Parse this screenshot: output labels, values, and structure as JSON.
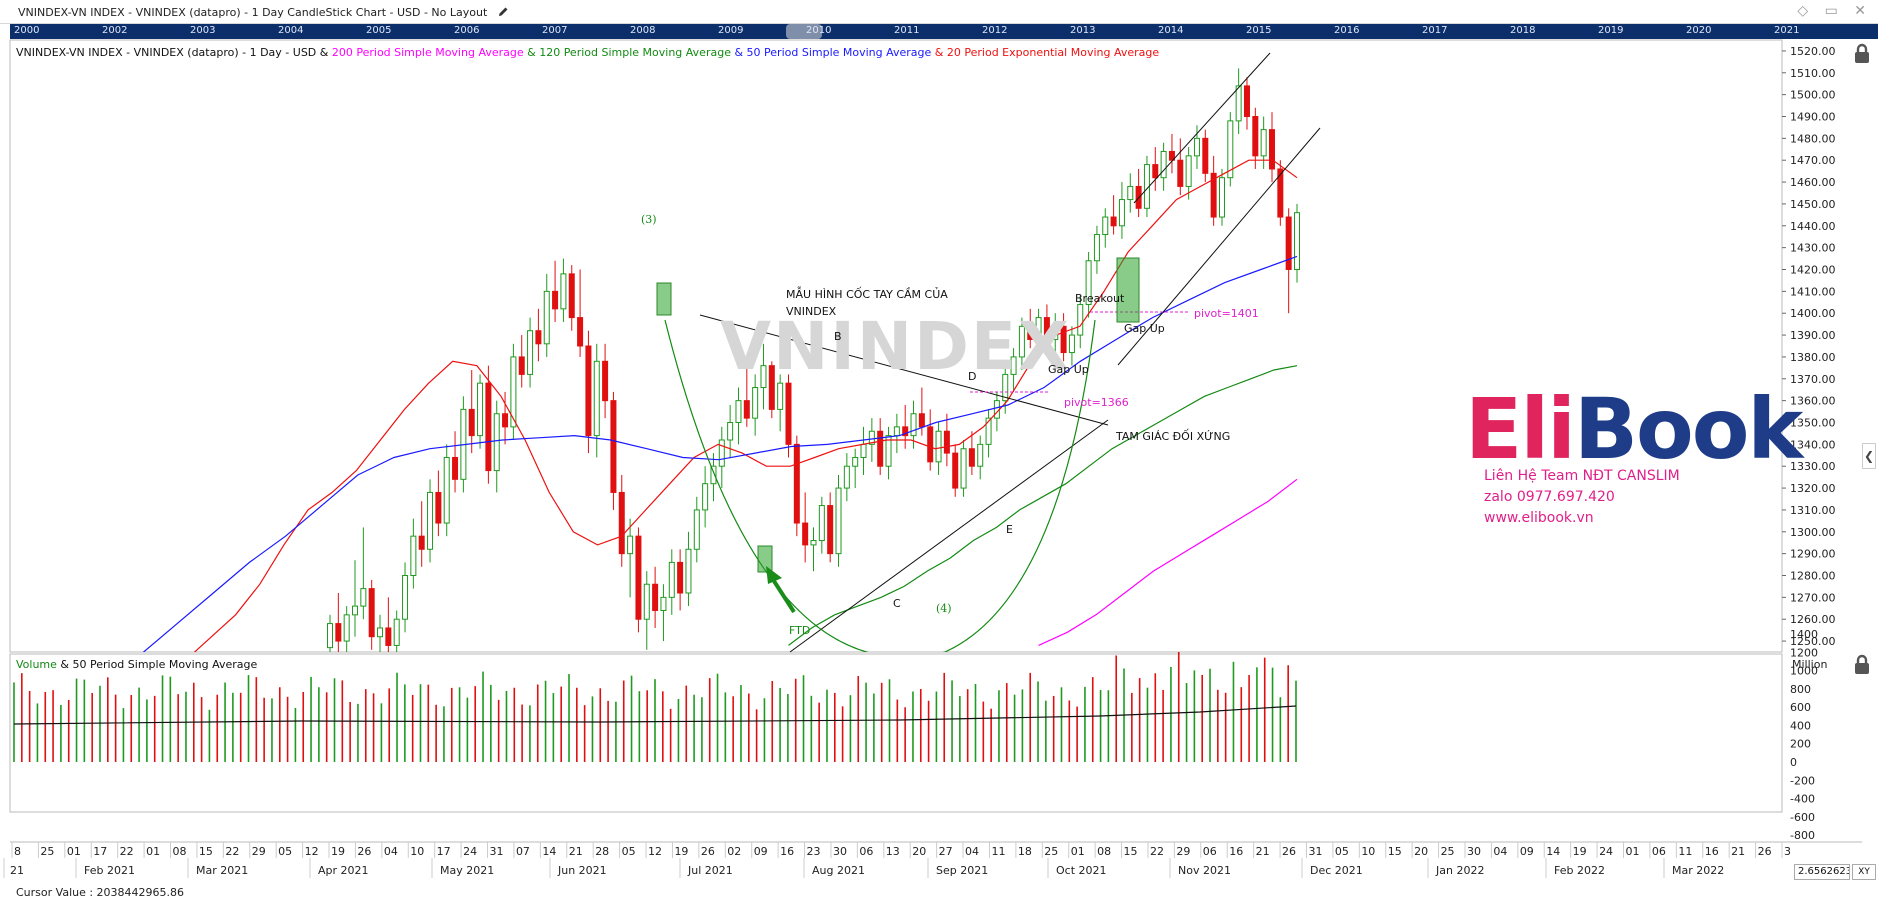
{
  "window": {
    "title": "VNINDEX-VN INDEX - VNINDEX (datapro) - 1 Day CandleStick Chart - USD - No Layout",
    "controls": "◇ ▭ ✕"
  },
  "year_strip": [
    "2000",
    "2002",
    "2003",
    "2004",
    "2005",
    "2006",
    "2007",
    "2008",
    "2009",
    "2010",
    "2011",
    "2012",
    "2013",
    "2014",
    "2015",
    "2016",
    "2017",
    "2018",
    "2019",
    "2020",
    "2021"
  ],
  "legend": {
    "base": "VNINDEX-VN INDEX - VNINDEX (datapro) - 1 Day - USD & ",
    "sma200": "200 Period Simple Moving Average",
    "amp1": " & ",
    "sma120": "120 Period Simple Moving Average",
    "amp2": " & ",
    "sma50": "50 Period Simple Moving Average",
    "amp3": " & ",
    "ema20": "20 Period Exponential Moving Average"
  },
  "volume_legend": {
    "volume": "Volume",
    "rest": " & 50 Period Simple Moving Average"
  },
  "annotations": {
    "pattern_line1": "MẪU HÌNH CỐC TAY CẦM CỦA",
    "pattern_line2": "VNINDEX",
    "watermark": "VNINDEX",
    "b": "B",
    "c": "C",
    "d": "D",
    "e": "E",
    "wave3": "(3)",
    "wave4": "(4)",
    "ftd": "FTD",
    "breakout": "Breakout",
    "gap_up_1": "Gap Up",
    "gap_up_2": "Gap Up",
    "pivot_1": "pivot=1401",
    "pivot_2": "pivot=1366",
    "triangle": "TAM GIÁC ĐỐI XỨNG"
  },
  "brand": {
    "logo_a": "Eli",
    "logo_b": "Book",
    "contact_line1": "Liên Hệ Team NĐT CANSLIM",
    "contact_line2": "zalo 0977.697.420",
    "contact_line3": "www.elibook.vn"
  },
  "footer": {
    "cursor_value": "Cursor Value : 2038442965.86",
    "zoom": "2.6562623",
    "xy": "XY"
  },
  "colors": {
    "up": "#1f9a1f",
    "down": "#e01010",
    "sma200": "#ff00ff",
    "sma120": "#138a13",
    "sma50": "#1a1aff",
    "ema20": "#ee1111",
    "year_strip": "#0c2f6b"
  },
  "chart_data": [
    {
      "type": "candlestick",
      "price_axis": {
        "ylim": [
          1245,
          1525
        ],
        "ticks": [
          "1520.00",
          "1510.00",
          "1500.00",
          "1490.00",
          "1480.00",
          "1470.00",
          "1460.00",
          "1450.00",
          "1440.00",
          "1430.00",
          "1420.00",
          "1410.00",
          "1400.00",
          "1390.00",
          "1380.00",
          "1370.00",
          "1360.00",
          "1350.00",
          "1340.00",
          "1330.00",
          "1320.00",
          "1310.00",
          "1300.00",
          "1290.00",
          "1280.00",
          "1270.00",
          "1260.00",
          "1250.00"
        ]
      },
      "x_axis": {
        "day_ticks": [
          "8",
          "25",
          "01",
          "17",
          "22",
          "01",
          "08",
          "15",
          "22",
          "29",
          "05",
          "12",
          "19",
          "26",
          "04",
          "10",
          "17",
          "24",
          "31",
          "07",
          "14",
          "21",
          "28",
          "05",
          "12",
          "19",
          "26",
          "02",
          "09",
          "16",
          "23",
          "30",
          "06",
          "13",
          "20",
          "27",
          "04",
          "11",
          "18",
          "25",
          "01",
          "08",
          "15",
          "22",
          "29",
          "06",
          "16",
          "21",
          "26",
          "31",
          "05",
          "10",
          "15",
          "20",
          "25",
          "30",
          "04",
          "09",
          "14",
          "19",
          "24",
          "01",
          "06",
          "11",
          "16",
          "21",
          "26",
          "3"
        ],
        "month_ticks": [
          "21",
          "Feb 2021",
          "Mar 2021",
          "Apr 2021",
          "May 2021",
          "Jun 2021",
          "Jul 2021",
          "Aug 2021",
          "Sep 2021",
          "Oct 2021",
          "Nov 2021",
          "Dec 2021",
          "Jan 2022",
          "Feb 2022",
          "Mar 2022"
        ]
      },
      "candles": [
        [
          1247,
          1262,
          1238,
          1258
        ],
        [
          1258,
          1272,
          1244,
          1250
        ],
        [
          1250,
          1266,
          1240,
          1262
        ],
        [
          1262,
          1287,
          1252,
          1266
        ],
        [
          1266,
          1302,
          1260,
          1274
        ],
        [
          1274,
          1278,
          1246,
          1252
        ],
        [
          1252,
          1262,
          1240,
          1256
        ],
        [
          1256,
          1270,
          1244,
          1248
        ],
        [
          1248,
          1264,
          1236,
          1260
        ],
        [
          1260,
          1286,
          1254,
          1280
        ],
        [
          1280,
          1306,
          1274,
          1298
        ],
        [
          1298,
          1314,
          1284,
          1292
        ],
        [
          1292,
          1324,
          1286,
          1318
        ],
        [
          1318,
          1328,
          1298,
          1304
        ],
        [
          1304,
          1340,
          1298,
          1334
        ],
        [
          1334,
          1346,
          1318,
          1324
        ],
        [
          1324,
          1362,
          1318,
          1356
        ],
        [
          1356,
          1374,
          1336,
          1344
        ],
        [
          1344,
          1372,
          1338,
          1368
        ],
        [
          1368,
          1376,
          1322,
          1328
        ],
        [
          1328,
          1360,
          1318,
          1354
        ],
        [
          1354,
          1364,
          1340,
          1348
        ],
        [
          1348,
          1386,
          1342,
          1380
        ],
        [
          1380,
          1390,
          1366,
          1372
        ],
        [
          1372,
          1398,
          1366,
          1392
        ],
        [
          1392,
          1402,
          1378,
          1386
        ],
        [
          1386,
          1418,
          1380,
          1410
        ],
        [
          1410,
          1424,
          1396,
          1402
        ],
        [
          1402,
          1425,
          1396,
          1418
        ],
        [
          1418,
          1422,
          1392,
          1398
        ],
        [
          1398,
          1420,
          1380,
          1385
        ],
        [
          1385,
          1392,
          1336,
          1344
        ],
        [
          1344,
          1386,
          1334,
          1378
        ],
        [
          1378,
          1386,
          1352,
          1360
        ],
        [
          1360,
          1364,
          1310,
          1318
        ],
        [
          1318,
          1326,
          1284,
          1290
        ],
        [
          1290,
          1306,
          1270,
          1298
        ],
        [
          1298,
          1302,
          1254,
          1260
        ],
        [
          1260,
          1282,
          1246,
          1276
        ],
        [
          1276,
          1284,
          1256,
          1264
        ],
        [
          1264,
          1276,
          1250,
          1270
        ],
        [
          1270,
          1292,
          1262,
          1286
        ],
        [
          1286,
          1292,
          1264,
          1272
        ],
        [
          1272,
          1300,
          1266,
          1292
        ],
        [
          1292,
          1316,
          1286,
          1310
        ],
        [
          1310,
          1330,
          1302,
          1322
        ],
        [
          1322,
          1336,
          1314,
          1330
        ],
        [
          1330,
          1348,
          1320,
          1342
        ],
        [
          1342,
          1358,
          1334,
          1350
        ],
        [
          1350,
          1366,
          1340,
          1360
        ],
        [
          1360,
          1376,
          1348,
          1352
        ],
        [
          1352,
          1372,
          1344,
          1366
        ],
        [
          1366,
          1386,
          1356,
          1376
        ],
        [
          1376,
          1378,
          1352,
          1356
        ],
        [
          1356,
          1372,
          1346,
          1368
        ],
        [
          1368,
          1372,
          1334,
          1340
        ],
        [
          1340,
          1344,
          1298,
          1304
        ],
        [
          1304,
          1318,
          1286,
          1294
        ],
        [
          1294,
          1302,
          1282,
          1296
        ],
        [
          1296,
          1316,
          1290,
          1312
        ],
        [
          1312,
          1318,
          1286,
          1290
        ],
        [
          1290,
          1326,
          1284,
          1320
        ],
        [
          1320,
          1336,
          1314,
          1330
        ],
        [
          1330,
          1338,
          1320,
          1334
        ],
        [
          1334,
          1348,
          1326,
          1340
        ],
        [
          1340,
          1352,
          1332,
          1346
        ],
        [
          1346,
          1352,
          1326,
          1330
        ],
        [
          1330,
          1348,
          1324,
          1344
        ],
        [
          1344,
          1354,
          1336,
          1348
        ],
        [
          1348,
          1358,
          1338,
          1344
        ],
        [
          1344,
          1360,
          1338,
          1354
        ],
        [
          1354,
          1366,
          1344,
          1348
        ],
        [
          1348,
          1356,
          1328,
          1332
        ],
        [
          1332,
          1350,
          1326,
          1346
        ],
        [
          1346,
          1354,
          1330,
          1336
        ],
        [
          1336,
          1340,
          1316,
          1320
        ],
        [
          1320,
          1342,
          1316,
          1338
        ],
        [
          1338,
          1346,
          1326,
          1330
        ],
        [
          1330,
          1344,
          1324,
          1340
        ],
        [
          1340,
          1356,
          1334,
          1352
        ],
        [
          1352,
          1364,
          1346,
          1360
        ],
        [
          1360,
          1378,
          1354,
          1372
        ],
        [
          1372,
          1384,
          1364,
          1380
        ],
        [
          1380,
          1398,
          1374,
          1394
        ],
        [
          1394,
          1402,
          1384,
          1388
        ],
        [
          1388,
          1402,
          1380,
          1398
        ],
        [
          1398,
          1404,
          1384,
          1388
        ],
        [
          1388,
          1400,
          1380,
          1394
        ],
        [
          1394,
          1400,
          1378,
          1382
        ],
        [
          1382,
          1394,
          1376,
          1390
        ],
        [
          1390,
          1408,
          1384,
          1404
        ],
        [
          1404,
          1428,
          1398,
          1424
        ],
        [
          1424,
          1440,
          1418,
          1436
        ],
        [
          1436,
          1448,
          1430,
          1444
        ],
        [
          1444,
          1454,
          1436,
          1440
        ],
        [
          1440,
          1460,
          1434,
          1452
        ],
        [
          1452,
          1464,
          1446,
          1458
        ],
        [
          1458,
          1466,
          1444,
          1448
        ],
        [
          1448,
          1472,
          1444,
          1468
        ],
        [
          1468,
          1476,
          1456,
          1462
        ],
        [
          1462,
          1478,
          1456,
          1474
        ],
        [
          1474,
          1482,
          1464,
          1470
        ],
        [
          1470,
          1480,
          1454,
          1458
        ],
        [
          1458,
          1476,
          1452,
          1472
        ],
        [
          1472,
          1486,
          1466,
          1480
        ],
        [
          1480,
          1484,
          1460,
          1464
        ],
        [
          1464,
          1472,
          1440,
          1444
        ],
        [
          1444,
          1466,
          1440,
          1462
        ],
        [
          1462,
          1492,
          1458,
          1488
        ],
        [
          1488,
          1512,
          1482,
          1504
        ],
        [
          1504,
          1508,
          1484,
          1490
        ],
        [
          1490,
          1494,
          1466,
          1472
        ],
        [
          1472,
          1490,
          1466,
          1484
        ],
        [
          1484,
          1492,
          1460,
          1466
        ],
        [
          1466,
          1470,
          1440,
          1444
        ],
        [
          1444,
          1448,
          1400,
          1420
        ],
        [
          1420,
          1450,
          1414,
          1446
        ]
      ],
      "moving_averages": {
        "ema20": [
          1236,
          1242,
          1252,
          1262,
          1276,
          1294,
          1310,
          1318,
          1328,
          1342,
          1356,
          1368,
          1378,
          1376,
          1362,
          1342,
          1318,
          1300,
          1294,
          1298,
          1310,
          1322,
          1334,
          1340,
          1336,
          1330,
          1330,
          1334,
          1338,
          1340,
          1342,
          1342,
          1338,
          1340,
          1348,
          1360,
          1378,
          1390,
          1394,
          1410,
          1428,
          1440,
          1452,
          1458,
          1464,
          1470,
          1470,
          1462
        ],
        "sma50": [
          1210,
          1214,
          1222,
          1232,
          1244,
          1258,
          1272,
          1286,
          1298,
          1312,
          1326,
          1334,
          1338,
          1340,
          1342,
          1343,
          1344,
          1342,
          1338,
          1334,
          1333,
          1336,
          1339,
          1340,
          1342,
          1344,
          1350,
          1354,
          1358,
          1366,
          1378,
          1388,
          1398,
          1406,
          1414,
          1420,
          1426
        ],
        "sma120": [
          1248,
          1256,
          1262,
          1266,
          1270,
          1275,
          1282,
          1288,
          1296,
          1302,
          1310,
          1316,
          1322,
          1330,
          1338,
          1344,
          1350,
          1356,
          1362,
          1366,
          1370,
          1374,
          1376
        ],
        "sma200": [
          1248,
          1254,
          1262,
          1272,
          1282,
          1290,
          1298,
          1306,
          1314,
          1324
        ]
      },
      "volume_axis": {
        "unit": "Million",
        "ticks": [
          "1400",
          "1200",
          "1000",
          "800",
          "600",
          "400",
          "200",
          "0",
          "-200",
          "-400",
          "-600",
          "-800"
        ]
      }
    }
  ]
}
